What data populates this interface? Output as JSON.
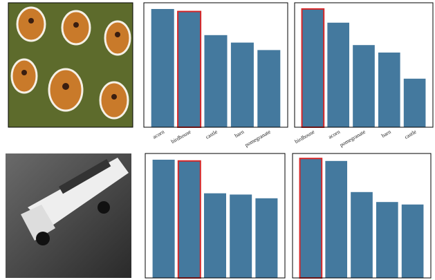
{
  "chart_data": [
    {
      "type": "bar",
      "categories": [
        "acorn",
        "birdhouse",
        "castle",
        "barn",
        "pomegranate"
      ],
      "values": [
        0.95,
        0.93,
        0.74,
        0.68,
        0.62
      ],
      "color": "#44799e",
      "highlight_index": 1,
      "highlight_color": "#d62728",
      "ylim": [
        0,
        1
      ]
    },
    {
      "type": "bar",
      "categories": [
        "birdhouse",
        "acorn",
        "pomegranate",
        "barn",
        "castle"
      ],
      "values": [
        0.95,
        0.84,
        0.66,
        0.6,
        0.39
      ],
      "color": "#44799e",
      "highlight_index": 0,
      "highlight_color": "#d62728",
      "ylim": [
        0,
        1
      ]
    },
    {
      "type": "bar",
      "categories": [
        null,
        null,
        null,
        null,
        null
      ],
      "values": [
        0.95,
        0.94,
        0.68,
        0.67,
        0.64
      ],
      "color": "#44799e",
      "highlight_index": 1,
      "highlight_color": "#d62728",
      "ylim": [
        0,
        1
      ]
    },
    {
      "type": "bar",
      "categories": [
        null,
        null,
        null,
        null,
        null
      ],
      "values": [
        0.96,
        0.94,
        0.69,
        0.61,
        0.59
      ],
      "color": "#44799e",
      "highlight_index": 0,
      "highlight_color": "#d62728",
      "ylim": [
        0,
        1
      ]
    }
  ]
}
